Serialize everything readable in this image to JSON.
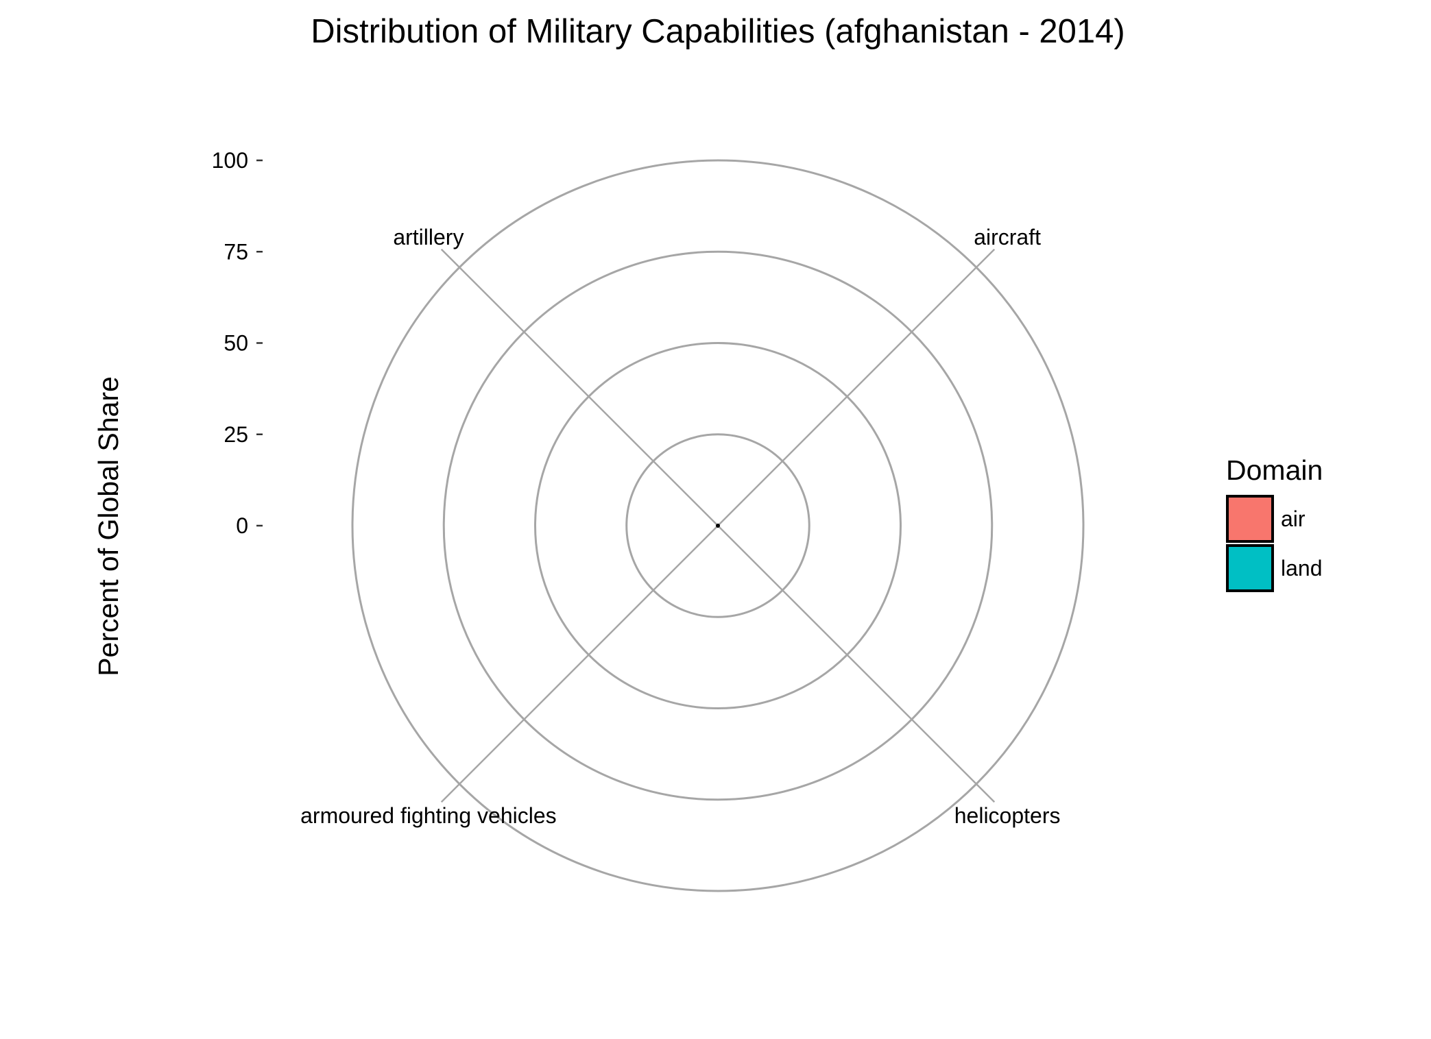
{
  "chart_data": {
    "type": "bar",
    "coord": "polar",
    "title": "Distribution of Military Capabilities (afghanistan - 2014)",
    "xlabel": "",
    "ylabel": "Percent of Global Share",
    "ylim": [
      0,
      100
    ],
    "yticks": [
      0,
      25,
      50,
      75,
      100
    ],
    "ytick_labels": [
      "0",
      "25",
      "50",
      "75",
      "100"
    ],
    "categories": [
      "aircraft",
      "helicopters",
      "armoured fighting vehicles",
      "artillery"
    ],
    "domains": [
      "air",
      "air",
      "land",
      "land"
    ],
    "values": [
      0,
      0,
      0,
      0
    ],
    "grid": true,
    "grid_color": "#a6a6a6",
    "legend": {
      "title": "Domain",
      "position": "right",
      "entries": [
        {
          "label": "air",
          "color": "#F8766D"
        },
        {
          "label": "land",
          "color": "#00BFC4"
        }
      ]
    }
  }
}
